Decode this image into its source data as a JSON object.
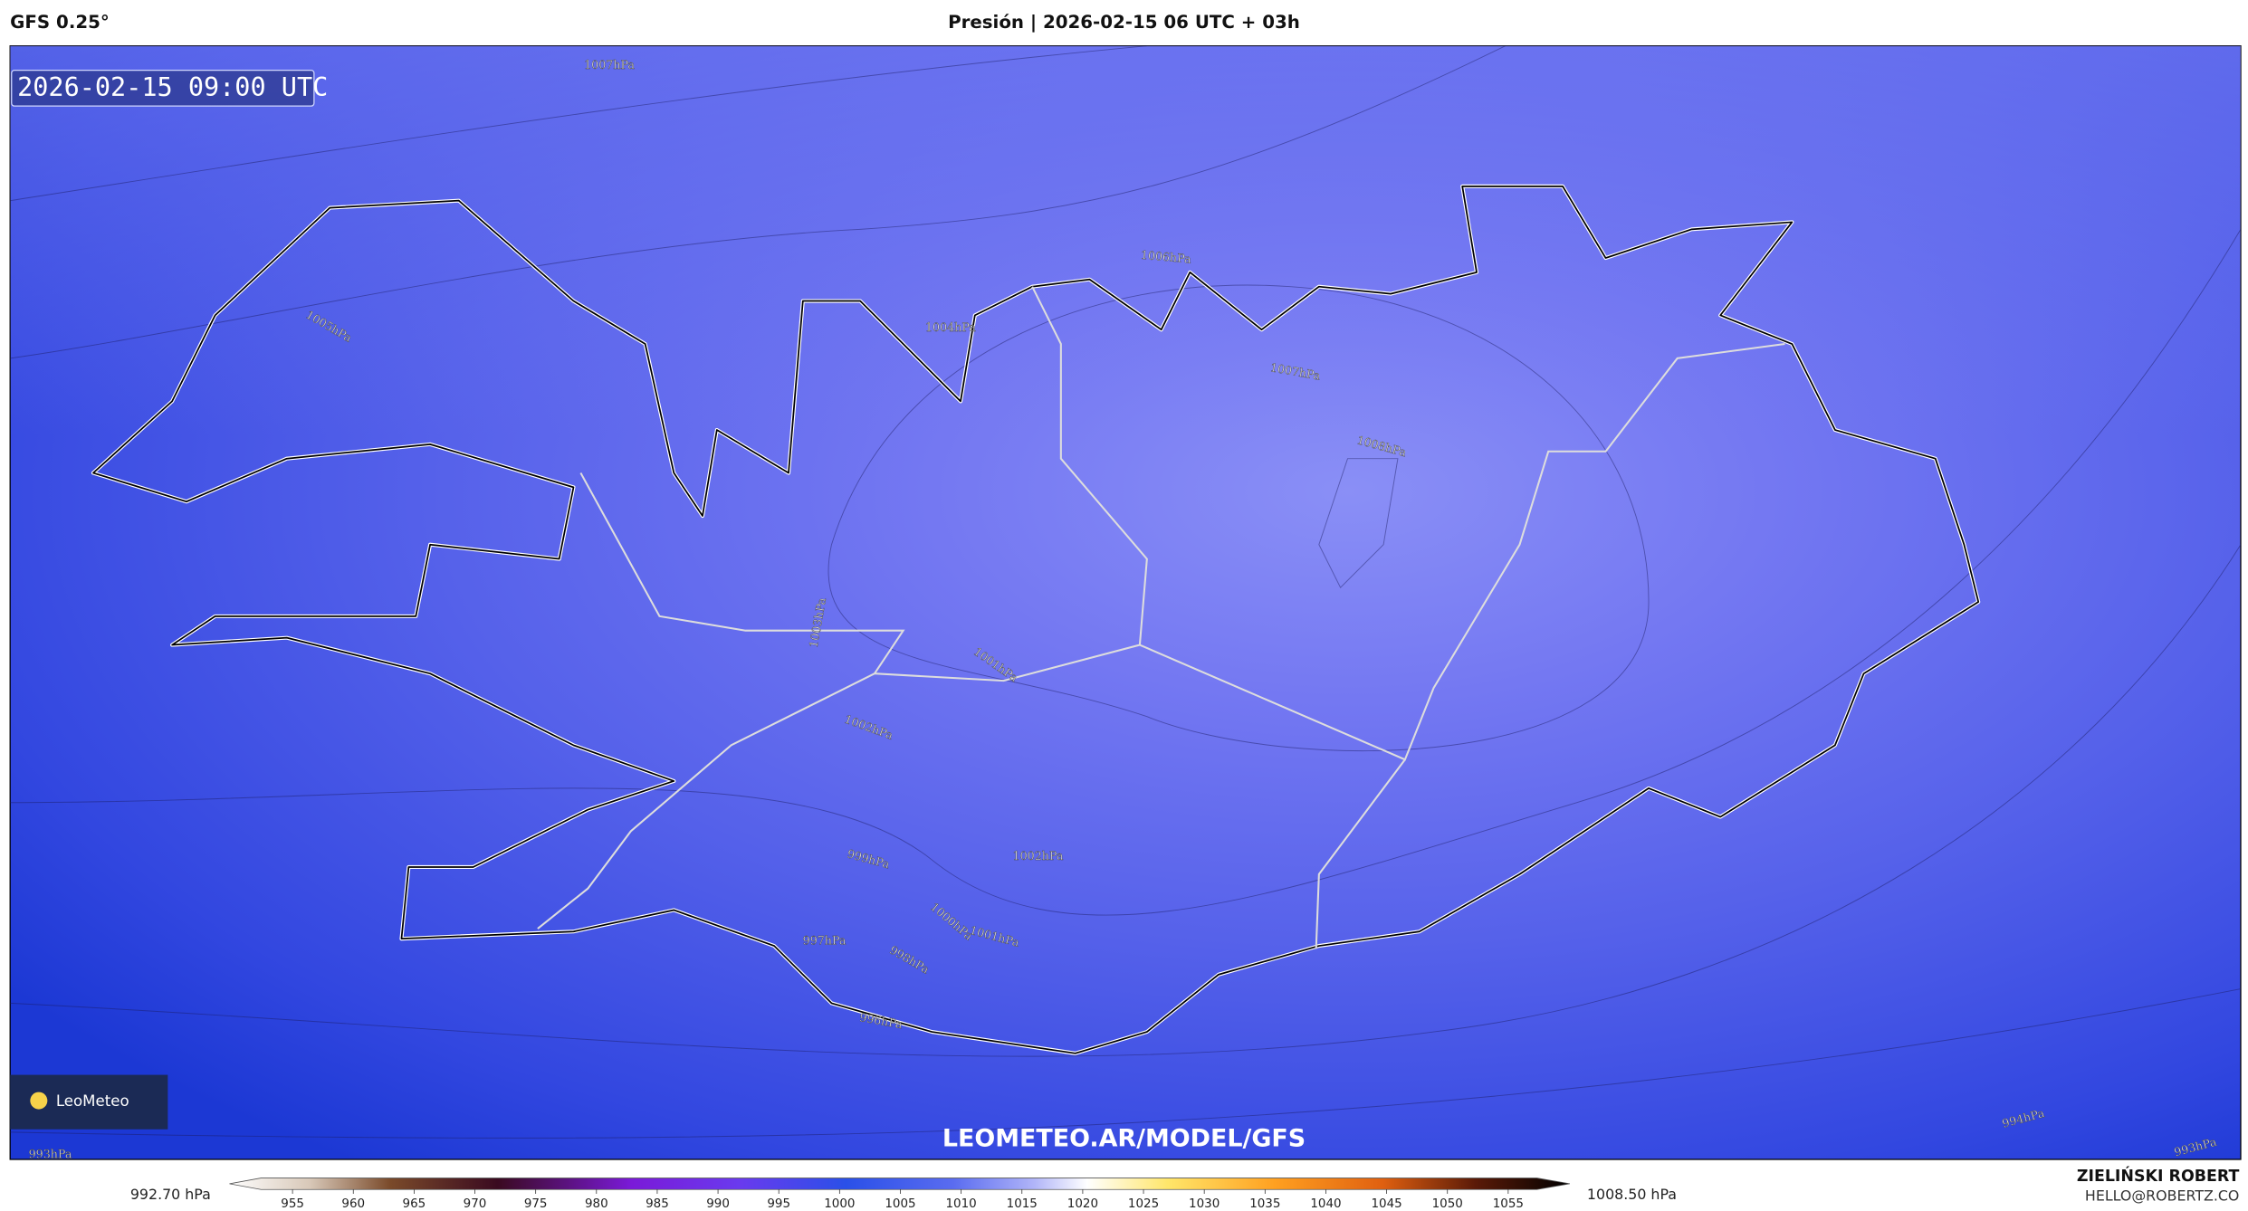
{
  "header": {
    "left": "GFS 0.25°",
    "center": "Presión | 2026-02-15 06 UTC + 03h"
  },
  "map": {
    "timestamp": "2026-02-15 09:00 UTC",
    "url": "LEOMETEO.AR/MODEL/GFS",
    "logo": "LeoMeteo",
    "contour_labels": [
      "1007hPa",
      "1006hPa",
      "1005hPa",
      "1004hPa",
      "1007hPa",
      "1008hPa",
      "1003hPa",
      "1001hPa",
      "1002hPa",
      "999hPa",
      "1002hPa",
      "997hPa",
      "1000hPa",
      "1001hPa",
      "998hPa",
      "996hPa",
      "994hPa",
      "993hPa",
      "993hPa"
    ]
  },
  "colorbar": {
    "min_label": "992.70 hPa",
    "max_label": "1008.50 hPa",
    "ticks": [
      955,
      960,
      965,
      970,
      975,
      980,
      985,
      990,
      995,
      1000,
      1005,
      1010,
      1015,
      1020,
      1025,
      1030,
      1035,
      1040,
      1045,
      1050,
      1055
    ]
  },
  "footer": {
    "author": "ZIELIŃSKI ROBERT",
    "email": "HELLO@ROBERTZ.CO"
  }
}
